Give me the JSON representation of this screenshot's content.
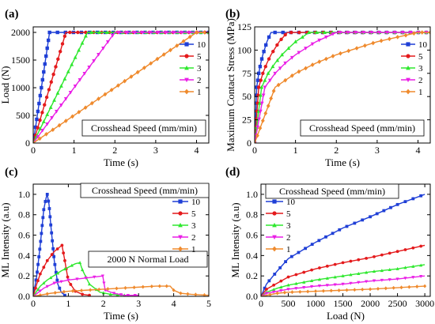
{
  "chart_data": [
    {
      "type": "line",
      "panel": "(a)",
      "xlabel": "Time (s)",
      "ylabel": "Load (N)",
      "xlim": [
        0,
        4.3
      ],
      "ylim": [
        0,
        2100
      ],
      "xticks": [
        0,
        1,
        2,
        3,
        4
      ],
      "yticks": [
        0,
        500,
        1000,
        1500,
        2000
      ],
      "annotation": "Crosshead Speed (mm/min)",
      "legend_position": "right",
      "series": [
        {
          "name": "10",
          "color": "#1f3fd6",
          "marker": "square",
          "x": [
            0,
            0.4,
            4.3
          ],
          "y": [
            0,
            2000,
            2000
          ]
        },
        {
          "name": "5",
          "color": "#e41a1c",
          "marker": "circle",
          "x": [
            0,
            0.8,
            4.3
          ],
          "y": [
            0,
            2000,
            2000
          ]
        },
        {
          "name": "3",
          "color": "#2ee82e",
          "marker": "triangle-up",
          "x": [
            0,
            1.33,
            4.3
          ],
          "y": [
            0,
            2000,
            2000
          ]
        },
        {
          "name": "2",
          "color": "#ea1fe6",
          "marker": "triangle-down",
          "x": [
            0,
            2.0,
            4.3
          ],
          "y": [
            0,
            2000,
            2000
          ]
        },
        {
          "name": "1",
          "color": "#ef8a2d",
          "marker": "diamond",
          "x": [
            0,
            4.0,
            4.3
          ],
          "y": [
            0,
            2000,
            2000
          ]
        }
      ]
    },
    {
      "type": "line",
      "panel": "(b)",
      "xlabel": "Time (s)",
      "ylabel": "Maximum Contact Stress (MPa)",
      "xlim": [
        0,
        4.3
      ],
      "ylim": [
        0,
        125
      ],
      "xticks": [
        0,
        1,
        2,
        3,
        4
      ],
      "yticks": [
        0,
        25,
        50,
        75,
        100,
        125
      ],
      "annotation": "Crosshead Speed (mm/min)",
      "legend_position": "right",
      "series": [
        {
          "name": "10",
          "color": "#1f3fd6",
          "marker": "square",
          "x": [
            0,
            0.05,
            0.1,
            0.15,
            0.2,
            0.25,
            0.3,
            0.35,
            0.4,
            4.3
          ],
          "y": [
            0,
            60,
            75,
            86,
            95,
            102,
            109,
            114,
            119,
            119
          ]
        },
        {
          "name": "5",
          "color": "#e41a1c",
          "marker": "circle",
          "x": [
            0,
            0.1,
            0.2,
            0.3,
            0.4,
            0.5,
            0.6,
            0.7,
            0.8,
            4.3
          ],
          "y": [
            0,
            60,
            75,
            86,
            95,
            102,
            109,
            114,
            119,
            119
          ]
        },
        {
          "name": "3",
          "color": "#2ee82e",
          "marker": "triangle-up",
          "x": [
            0,
            0.17,
            0.33,
            0.5,
            0.67,
            0.83,
            1.0,
            1.17,
            1.33,
            4.3
          ],
          "y": [
            0,
            60,
            75,
            86,
            95,
            102,
            109,
            114,
            119,
            119
          ]
        },
        {
          "name": "2",
          "color": "#ea1fe6",
          "marker": "triangle-down",
          "x": [
            0,
            0.25,
            0.5,
            0.75,
            1.0,
            1.25,
            1.5,
            1.75,
            2.0,
            4.3
          ],
          "y": [
            0,
            60,
            75,
            86,
            95,
            102,
            109,
            114,
            119,
            119
          ]
        },
        {
          "name": "1",
          "color": "#ef8a2d",
          "marker": "diamond",
          "x": [
            0,
            0.5,
            1.0,
            1.5,
            2.0,
            2.5,
            3.0,
            3.5,
            4.0,
            4.3
          ],
          "y": [
            0,
            60,
            75,
            86,
            95,
            102,
            109,
            114,
            119,
            119
          ]
        }
      ]
    },
    {
      "type": "line",
      "panel": "(c)",
      "xlabel": "Time (s)",
      "ylabel": "ML Intensity  (a.u)",
      "xlim": [
        0,
        5
      ],
      "ylim": [
        0,
        1.1
      ],
      "xticks": [
        0,
        1,
        2,
        3,
        4,
        5
      ],
      "yticks": [
        0.0,
        0.2,
        0.4,
        0.6,
        0.8,
        1.0
      ],
      "annotation": "Crosshead Speed (mm/min)",
      "annotation2": "2000 N Normal Load",
      "legend_position": "right",
      "series": [
        {
          "name": "10",
          "color": "#1f3fd6",
          "marker": "square",
          "x": [
            0,
            0.1,
            0.2,
            0.3,
            0.37,
            0.4,
            0.45,
            0.5,
            0.6,
            0.7,
            0.8,
            0.9
          ],
          "y": [
            0,
            0.2,
            0.5,
            0.85,
            0.97,
            1.0,
            0.9,
            0.7,
            0.35,
            0.12,
            0.04,
            0.01
          ]
        },
        {
          "name": "5",
          "color": "#e41a1c",
          "marker": "circle",
          "x": [
            0,
            0.1,
            0.2,
            0.4,
            0.6,
            0.78,
            0.82,
            0.9,
            1.0,
            1.2,
            1.4,
            1.6
          ],
          "y": [
            0,
            0.12,
            0.22,
            0.35,
            0.44,
            0.49,
            0.5,
            0.35,
            0.15,
            0.05,
            0.02,
            0.01
          ]
        },
        {
          "name": "3",
          "color": "#2ee82e",
          "marker": "triangle-up",
          "x": [
            0,
            0.2,
            0.4,
            0.8,
            1.2,
            1.33,
            1.4,
            1.6,
            1.9,
            2.2,
            2.6
          ],
          "y": [
            0,
            0.1,
            0.16,
            0.25,
            0.32,
            0.33,
            0.26,
            0.12,
            0.04,
            0.02,
            0.01
          ]
        },
        {
          "name": "2",
          "color": "#ea1fe6",
          "marker": "triangle-down",
          "x": [
            0,
            0.3,
            0.6,
            1.0,
            1.5,
            1.98,
            2.05,
            2.3,
            2.6,
            3.0
          ],
          "y": [
            0,
            0.08,
            0.13,
            0.16,
            0.18,
            0.2,
            0.06,
            0.03,
            0.01,
            0.01
          ]
        },
        {
          "name": "1",
          "color": "#ef8a2d",
          "marker": "diamond",
          "x": [
            0,
            0.5,
            1.0,
            1.5,
            2.0,
            2.5,
            3.0,
            3.5,
            3.9,
            4.0,
            4.2,
            4.5,
            5.0
          ],
          "y": [
            0,
            0.03,
            0.05,
            0.06,
            0.07,
            0.08,
            0.09,
            0.1,
            0.1,
            0.06,
            0.03,
            0.02,
            0.01
          ]
        }
      ]
    },
    {
      "type": "line",
      "panel": "(d)",
      "xlabel": "Load (N)",
      "ylabel": "ML Intensity  (a.u)",
      "xlim": [
        0,
        3100
      ],
      "ylim": [
        0,
        1.1
      ],
      "xticks": [
        0,
        500,
        1000,
        1500,
        2000,
        2500,
        3000
      ],
      "yticks": [
        0.0,
        0.2,
        0.4,
        0.6,
        0.8,
        1.0
      ],
      "annotation": "Crosshead Speed (mm/min)",
      "legend_position": "top-left",
      "series": [
        {
          "name": "10",
          "color": "#1f3fd6",
          "marker": "square",
          "x": [
            0,
            100,
            300,
            500,
            1000,
            1500,
            2000,
            2500,
            3000
          ],
          "y": [
            0,
            0.12,
            0.25,
            0.37,
            0.53,
            0.67,
            0.78,
            0.9,
            1.0
          ]
        },
        {
          "name": "5",
          "color": "#e41a1c",
          "marker": "circle",
          "x": [
            0,
            100,
            300,
            500,
            1000,
            1500,
            2000,
            2500,
            3000
          ],
          "y": [
            0,
            0.07,
            0.13,
            0.19,
            0.27,
            0.33,
            0.38,
            0.44,
            0.5
          ]
        },
        {
          "name": "3",
          "color": "#2ee82e",
          "marker": "triangle-up",
          "x": [
            0,
            100,
            300,
            500,
            1000,
            1500,
            2000,
            2500,
            3000
          ],
          "y": [
            0,
            0.04,
            0.08,
            0.11,
            0.16,
            0.2,
            0.24,
            0.27,
            0.31
          ]
        },
        {
          "name": "2",
          "color": "#ea1fe6",
          "marker": "triangle-down",
          "x": [
            0,
            100,
            300,
            500,
            1000,
            1500,
            2000,
            2500,
            3000
          ],
          "y": [
            0,
            0.03,
            0.05,
            0.07,
            0.1,
            0.12,
            0.15,
            0.17,
            0.2
          ]
        },
        {
          "name": "1",
          "color": "#ef8a2d",
          "marker": "diamond",
          "x": [
            0,
            100,
            300,
            500,
            1000,
            1500,
            2000,
            2500,
            3000
          ],
          "y": [
            0,
            0.01,
            0.03,
            0.04,
            0.05,
            0.06,
            0.07,
            0.085,
            0.1
          ]
        }
      ]
    }
  ]
}
